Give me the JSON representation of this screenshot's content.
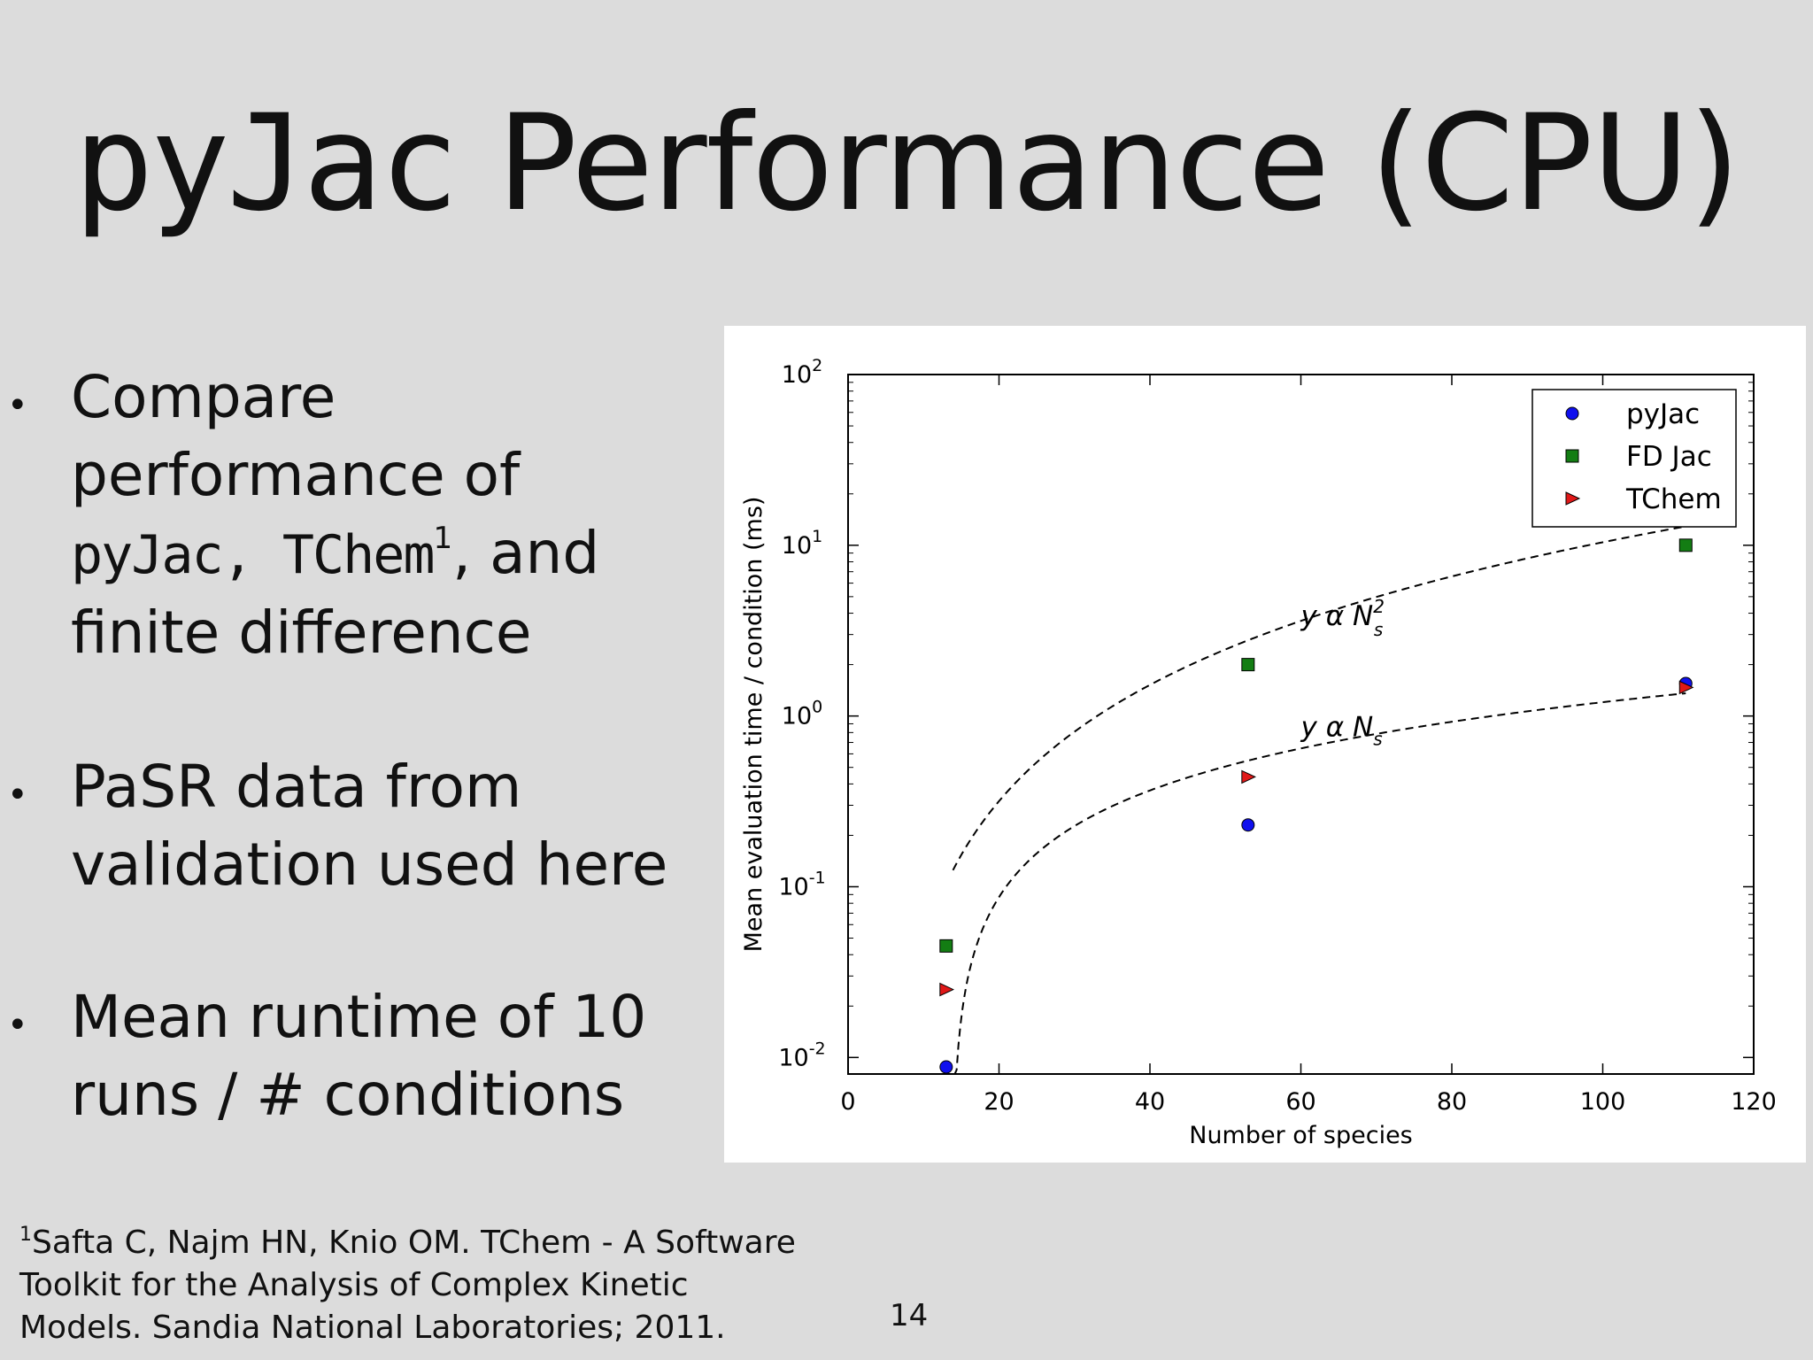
{
  "slide": {
    "title_mono": "pyJac",
    "title_rest": " Performance (CPU)",
    "page_number": "14"
  },
  "bullets": [
    {
      "text_a": "Compare performance of ",
      "code_a": "pyJac",
      "sep": ", ",
      "code_b": "TChem",
      "sup": "1",
      "text_b": ", and finite difference"
    },
    {
      "text": "PaSR data from validation used here"
    },
    {
      "text": "Mean runtime of 10 runs / # conditions"
    }
  ],
  "footnote": {
    "sup": "1",
    "text": "Safta C, Najm HN, Knio OM. TChem - A Software Toolkit for the Analysis of Complex Kinetic Models. Sandia National Laboratories; 2011."
  },
  "chart_data": {
    "type": "scatter",
    "xlabel": "Number of species",
    "ylabel": "Mean evaluation time / condition (ms)",
    "xlim": [
      0,
      120
    ],
    "ylim": [
      0.008,
      100
    ],
    "yscale": "log",
    "x_ticks": [
      0,
      20,
      40,
      60,
      80,
      100,
      120
    ],
    "y_ticks": [
      {
        "value": 0.01,
        "base": "10",
        "exp": "-2"
      },
      {
        "value": 0.1,
        "base": "10",
        "exp": "-1"
      },
      {
        "value": 1,
        "base": "10",
        "exp": "0"
      },
      {
        "value": 10,
        "base": "10",
        "exp": "1"
      },
      {
        "value": 100,
        "base": "10",
        "exp": "2"
      }
    ],
    "legend_position": "top-right",
    "series": [
      {
        "name": "pyJac",
        "marker": "circle",
        "color": "#1010ee",
        "x": [
          13,
          53,
          111
        ],
        "y": [
          0.0088,
          0.23,
          1.55
        ]
      },
      {
        "name": "FD Jac",
        "marker": "square",
        "color": "#137d13",
        "x": [
          13,
          53,
          111
        ],
        "y": [
          0.045,
          2.0,
          10.0
        ]
      },
      {
        "name": "TChem",
        "marker": "triangle-right",
        "color": "#e01818",
        "x": [
          13,
          53,
          111
        ],
        "y": [
          0.025,
          0.44,
          1.47
        ]
      }
    ],
    "fits": [
      {
        "label_y": "y",
        "label_alpha": "α",
        "label_N": "N",
        "label_sub": "s",
        "label_sup": "2",
        "kind": "quadratic",
        "x_start": 13.9,
        "x_end": 111,
        "a": 0.0011,
        "b": -0.0058,
        "c": -0.0069,
        "label_x": 60,
        "label_yval": 3.4
      },
      {
        "label_y": "y",
        "label_alpha": "α",
        "label_N": "N",
        "label_sub": "s",
        "label_sup": "",
        "kind": "linear",
        "x_start": 13.9,
        "x_end": 111,
        "a": 0.01397,
        "b": -0.1925,
        "label_x": 60,
        "label_yval": 0.76
      }
    ]
  }
}
